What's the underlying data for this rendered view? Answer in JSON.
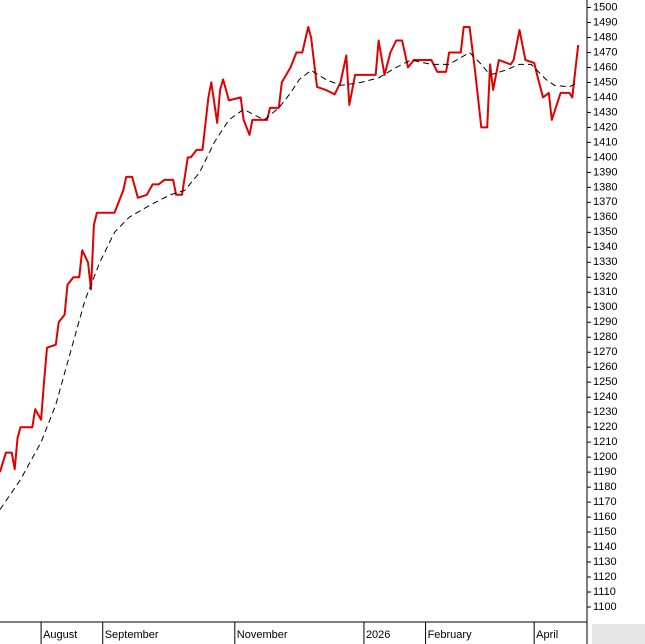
{
  "chart_data": {
    "type": "line",
    "xlim": [
      0,
      200
    ],
    "xticks": [
      {
        "value": 14,
        "label": "August"
      },
      {
        "value": 35,
        "label": "September"
      },
      {
        "value": 80,
        "label": "November"
      },
      {
        "value": 124,
        "label": "2026"
      },
      {
        "value": 145,
        "label": "February"
      },
      {
        "value": 182,
        "label": "April"
      }
    ],
    "ylim": [
      1090,
      1505
    ],
    "yticks": [
      1100,
      1110,
      1120,
      1130,
      1140,
      1150,
      1160,
      1170,
      1180,
      1190,
      1200,
      1210,
      1220,
      1230,
      1240,
      1250,
      1260,
      1270,
      1280,
      1290,
      1300,
      1310,
      1320,
      1330,
      1340,
      1350,
      1360,
      1370,
      1380,
      1390,
      1400,
      1410,
      1420,
      1430,
      1440,
      1450,
      1460,
      1470,
      1480,
      1490,
      1500
    ],
    "series": [
      {
        "color": "#e00000",
        "dashed": false,
        "x": [
          0,
          2,
          4,
          5,
          6,
          7,
          11,
          12,
          14,
          15,
          16,
          19,
          20,
          22,
          23,
          25,
          27,
          28,
          30,
          31,
          32,
          33,
          39,
          42,
          43,
          45,
          47,
          50,
          52,
          54,
          56,
          59,
          60,
          62,
          64,
          65,
          67,
          69,
          71,
          72,
          74,
          75,
          76,
          78,
          82,
          83,
          85,
          86,
          91,
          92,
          95,
          96,
          99,
          101,
          103,
          105,
          106,
          108,
          111,
          113,
          114,
          116,
          118,
          119,
          121,
          128,
          129,
          131,
          133,
          135,
          137,
          139,
          141,
          147,
          149,
          152,
          153,
          157,
          158,
          160,
          162,
          164,
          166,
          167,
          168,
          170,
          174,
          175,
          177,
          179,
          182,
          183,
          185,
          187,
          188,
          191,
          194,
          195,
          196,
          197
        ],
        "values": [
          1190,
          1203,
          1203,
          1192,
          1213,
          1220,
          1220,
          1232,
          1225,
          1250,
          1273,
          1275,
          1290,
          1295,
          1315,
          1320,
          1320,
          1338,
          1330,
          1312,
          1355,
          1363,
          1363,
          1378,
          1387,
          1387,
          1373,
          1375,
          1382,
          1382,
          1385,
          1385,
          1375,
          1375,
          1400,
          1400,
          1405,
          1405,
          1440,
          1450,
          1423,
          1445,
          1452,
          1438,
          1440,
          1425,
          1415,
          1425,
          1425,
          1433,
          1433,
          1450,
          1460,
          1470,
          1470,
          1487,
          1480,
          1447,
          1445,
          1443,
          1442,
          1450,
          1468,
          1435,
          1455,
          1455,
          1478,
          1455,
          1470,
          1478,
          1478,
          1460,
          1465,
          1465,
          1457,
          1457,
          1470,
          1470,
          1487,
          1487,
          1455,
          1420,
          1420,
          1462,
          1445,
          1465,
          1462,
          1465,
          1485,
          1465,
          1463,
          1455,
          1440,
          1443,
          1425,
          1443,
          1443,
          1440,
          1458,
          1475
        ]
      },
      {
        "color": "#000000",
        "dashed": true,
        "x": [
          0,
          7,
          14,
          19,
          24,
          29,
          34,
          39,
          44,
          51,
          58,
          63,
          68,
          73,
          78,
          83,
          90,
          95,
          99,
          102,
          106,
          111,
          116,
          123,
          129,
          135,
          140,
          147,
          153,
          160,
          164,
          167,
          172,
          177,
          181,
          186,
          189,
          194,
          197
        ],
        "values": [
          1165,
          1185,
          1210,
          1235,
          1270,
          1305,
          1330,
          1350,
          1360,
          1368,
          1375,
          1378,
          1390,
          1410,
          1425,
          1432,
          1425,
          1433,
          1443,
          1452,
          1458,
          1452,
          1448,
          1450,
          1453,
          1460,
          1465,
          1462,
          1462,
          1470,
          1462,
          1455,
          1458,
          1462,
          1462,
          1452,
          1448,
          1447,
          1450
        ]
      }
    ]
  }
}
